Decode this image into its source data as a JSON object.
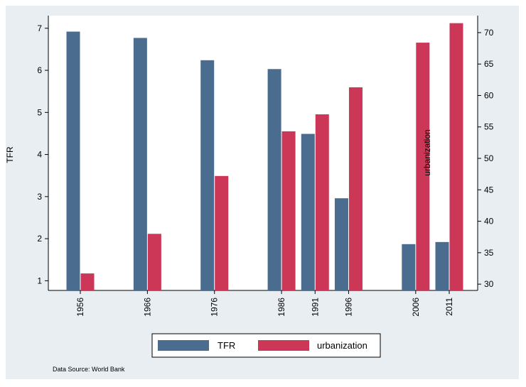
{
  "chart_data": {
    "type": "bar",
    "categories": [
      "1956",
      "1966",
      "1976",
      "1986",
      "1991",
      "1996",
      "2006",
      "2011"
    ],
    "x": [
      1956,
      1966,
      1976,
      1986,
      1991,
      1996,
      2006,
      2011
    ],
    "series": [
      {
        "name": "TFR",
        "axis": "left",
        "color": "#4a6d8f",
        "values": [
          6.92,
          6.77,
          6.24,
          6.03,
          4.49,
          2.96,
          1.87,
          1.92
        ]
      },
      {
        "name": "urbanization",
        "axis": "right",
        "color": "#cc3657",
        "values": [
          31.7,
          38.0,
          47.2,
          54.3,
          57.0,
          61.3,
          68.4,
          71.5
        ]
      }
    ],
    "ylabel": "TFR",
    "ylabel_right": "urbanization",
    "ylim": [
      0.77,
      7.3
    ],
    "ylim_right": [
      29.0,
      72.7
    ],
    "yticks": [
      1,
      2,
      3,
      4,
      5,
      6,
      7
    ],
    "yticks_right": [
      30,
      35,
      40,
      45,
      50,
      55,
      60,
      65,
      70
    ],
    "legend_position": "bottom",
    "grid": false,
    "note": "Data Source: World Bank"
  }
}
